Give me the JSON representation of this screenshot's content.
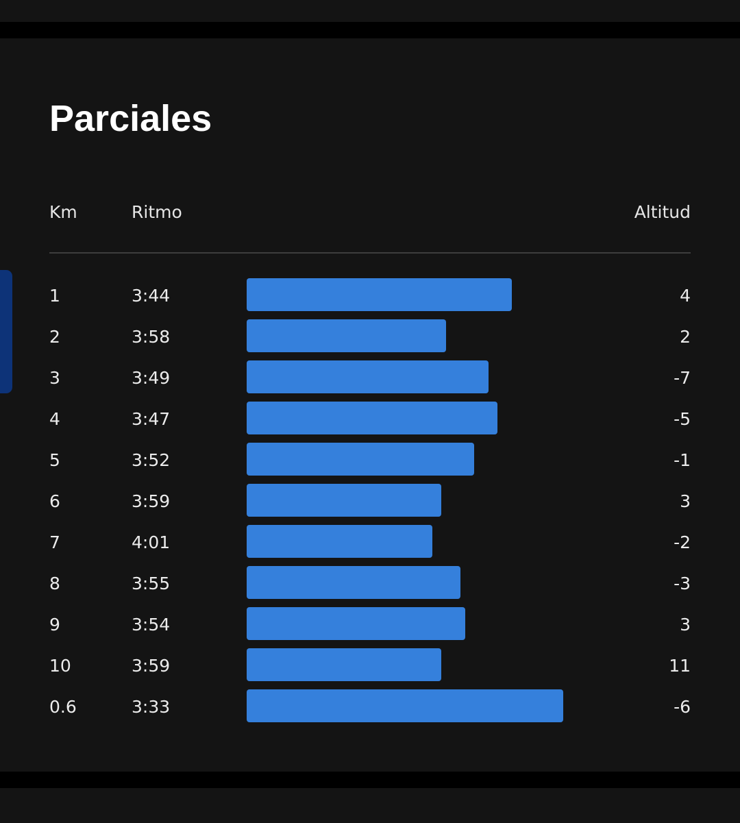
{
  "title": "Parciales",
  "columns": {
    "km": "Km",
    "pace": "Ritmo",
    "elevation": "Altitud"
  },
  "colors": {
    "background": "#141414",
    "bar": "#3580dc",
    "side_tab": "#0d3378"
  },
  "splits": [
    {
      "km": "1",
      "pace": "3:44",
      "elevation": "4"
    },
    {
      "km": "2",
      "pace": "3:58",
      "elevation": "2"
    },
    {
      "km": "3",
      "pace": "3:49",
      "elevation": "-7"
    },
    {
      "km": "4",
      "pace": "3:47",
      "elevation": "-5"
    },
    {
      "km": "5",
      "pace": "3:52",
      "elevation": "-1"
    },
    {
      "km": "6",
      "pace": "3:59",
      "elevation": "3"
    },
    {
      "km": "7",
      "pace": "4:01",
      "elevation": "-2"
    },
    {
      "km": "8",
      "pace": "3:55",
      "elevation": "-3"
    },
    {
      "km": "9",
      "pace": "3:54",
      "elevation": "3"
    },
    {
      "km": "10",
      "pace": "3:59",
      "elevation": "11"
    },
    {
      "km": "0.6",
      "pace": "3:33",
      "elevation": "-6"
    }
  ]
}
